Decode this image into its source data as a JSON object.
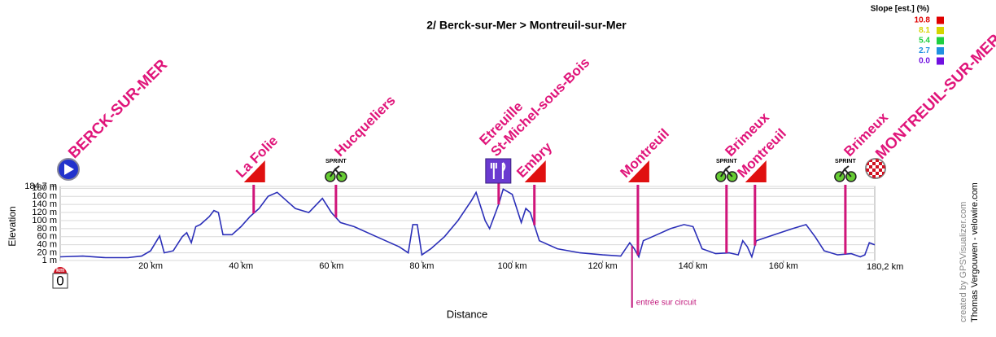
{
  "chart_data": {
    "type": "line",
    "title": "2/ Berck-sur-Mer > Montreuil-sur-Mer",
    "x_label": "Distance",
    "y_label": "Elevation",
    "xlim": [
      0,
      180.2
    ],
    "ylim": [
      1,
      184.7
    ],
    "xticks": [
      {
        "value": 0,
        "label": "0"
      },
      {
        "value": 20,
        "label": "20 km"
      },
      {
        "value": 40,
        "label": "40 km"
      },
      {
        "value": 60,
        "label": "60 km"
      },
      {
        "value": 80,
        "label": "80 km"
      },
      {
        "value": 100,
        "label": "100 km"
      },
      {
        "value": 120,
        "label": "120 km"
      },
      {
        "value": 140,
        "label": "140 km"
      },
      {
        "value": 160,
        "label": "160 km"
      },
      {
        "value": 180.2,
        "label": "180,2 km"
      }
    ],
    "yticks": [
      {
        "value": 1,
        "label": "1 m"
      },
      {
        "value": 20,
        "label": "20 m"
      },
      {
        "value": 40,
        "label": "40 m"
      },
      {
        "value": 60,
        "label": "60 m"
      },
      {
        "value": 80,
        "label": "80 m"
      },
      {
        "value": 100,
        "label": "100 m"
      },
      {
        "value": 120,
        "label": "120 m"
      },
      {
        "value": 140,
        "label": "140 m"
      },
      {
        "value": 160,
        "label": "160 m"
      },
      {
        "value": 180,
        "label": "180 m"
      },
      {
        "value": 184.7,
        "label": "184.7 m"
      }
    ],
    "grid": true,
    "km_marker": "km",
    "x": [
      0,
      5,
      10,
      15,
      18,
      20,
      22,
      23,
      25,
      27,
      28,
      29,
      30,
      31,
      33,
      34,
      35,
      36,
      38,
      40,
      42,
      44,
      46,
      48,
      50,
      52,
      55,
      58,
      60,
      62,
      65,
      70,
      75,
      77,
      78,
      79,
      80,
      82,
      85,
      88,
      91,
      92,
      94,
      95,
      97,
      98,
      100,
      102,
      103,
      104,
      106,
      110,
      115,
      120,
      124,
      126,
      127,
      128,
      129,
      132,
      135,
      138,
      140,
      142,
      145,
      148,
      150,
      151,
      152,
      153,
      154,
      158,
      162,
      165,
      167,
      169,
      172,
      175,
      177,
      178,
      179,
      180.2
    ],
    "series": [
      {
        "name": "Elevation",
        "color": "#2b2fb8",
        "values": [
          10,
          12,
          8,
          8,
          12,
          25,
          62,
          20,
          25,
          60,
          70,
          45,
          85,
          90,
          110,
          125,
          120,
          65,
          65,
          85,
          110,
          130,
          160,
          170,
          150,
          130,
          120,
          155,
          120,
          95,
          85,
          60,
          35,
          20,
          90,
          90,
          15,
          30,
          60,
          100,
          150,
          170,
          100,
          80,
          140,
          178,
          165,
          95,
          130,
          120,
          50,
          30,
          20,
          15,
          12,
          45,
          30,
          10,
          50,
          65,
          80,
          90,
          85,
          30,
          18,
          20,
          15,
          50,
          35,
          10,
          50,
          65,
          80,
          90,
          60,
          25,
          15,
          18,
          10,
          15,
          45,
          40
        ]
      }
    ],
    "places": [
      {
        "names": [
          "BERCK-SUR-MER"
        ],
        "km": 0,
        "icon": "start"
      },
      {
        "names": [
          "La Folie"
        ],
        "km": 42.8,
        "icon": "climb"
      },
      {
        "names": [
          "Hucqueliers"
        ],
        "km": 61,
        "icon": "sprint",
        "sprint": "SPRINT"
      },
      {
        "names": [
          "Etreuille",
          "St-Michel-sous-Bois"
        ],
        "km": 97,
        "icon": "food"
      },
      {
        "names": [
          "Embry"
        ],
        "km": 104.9,
        "icon": "climb"
      },
      {
        "names": [
          "Montreuil"
        ],
        "km": 127.8,
        "icon": "climb"
      },
      {
        "names": [
          "Brimeux"
        ],
        "km": 147.4,
        "icon": "sprint",
        "sprint": "SPRINT"
      },
      {
        "names": [
          "Montreuil"
        ],
        "km": 153.7,
        "icon": "climb"
      },
      {
        "names": [
          "Brimeux"
        ],
        "km": 173.7,
        "icon": "sprint",
        "sprint": "SPRINT"
      },
      {
        "names": [
          "MONTREUIL-SUR-MER"
        ],
        "km": 180.2,
        "icon": "finish"
      }
    ],
    "circuit": {
      "label": "entrée sur circuit",
      "km": 126.5
    },
    "slope_legend": {
      "title": "Slope [est.] (%)",
      "values": [
        10.8,
        8.1,
        5.4,
        2.7,
        0
      ],
      "value_labels": [
        "10.8",
        "8.1",
        "5.4",
        "2.7",
        "0.0"
      ],
      "colors": [
        "#e00000",
        "#d4d400",
        "#1fd040",
        "#2090e0",
        "#7010e0"
      ]
    },
    "credits": [
      "created by GPSVisualizer.com",
      "Thomas Vergouwen - velowire.com"
    ]
  }
}
